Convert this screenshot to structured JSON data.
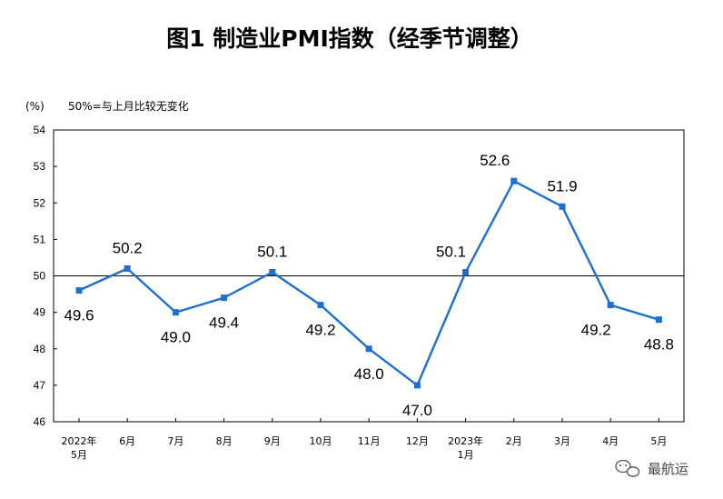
{
  "title": "图1  制造业PMI指数（经季节调整）",
  "watermark": {
    "text": "最航运",
    "icon": "wechat-icon"
  },
  "chart_data": {
    "type": "line",
    "title": "图1  制造业PMI指数（经季节调整）",
    "ylabel": "(%)",
    "annotation": "50%=与上月比较无变化",
    "categories": [
      [
        "2022年",
        "5月"
      ],
      [
        "6月"
      ],
      [
        "7月"
      ],
      [
        "8月"
      ],
      [
        "9月"
      ],
      [
        "10月"
      ],
      [
        "11月"
      ],
      [
        "12月"
      ],
      [
        "2023年",
        "1月"
      ],
      [
        "2月"
      ],
      [
        "3月"
      ],
      [
        "4月"
      ],
      [
        "5月"
      ]
    ],
    "series": [
      {
        "values": [
          49.6,
          50.2,
          49.0,
          49.4,
          50.1,
          49.2,
          48.0,
          47.0,
          50.1,
          52.6,
          51.9,
          49.2,
          48.8
        ]
      }
    ],
    "data_labels": [
      "49.6",
      "50.2",
      "49.0",
      "49.4",
      "50.1",
      "49.2",
      "48.0",
      "47.0",
      "50.1",
      "52.6",
      "51.9",
      "49.2",
      "48.8"
    ],
    "yticks": [
      "46",
      "47",
      "48",
      "49",
      "50",
      "51",
      "52",
      "53",
      "54"
    ],
    "ylim": [
      46,
      54
    ],
    "reference_line": 50,
    "grid": false,
    "legend": "none",
    "line_color": "#1f6fd1",
    "reference_color": "#000000"
  }
}
